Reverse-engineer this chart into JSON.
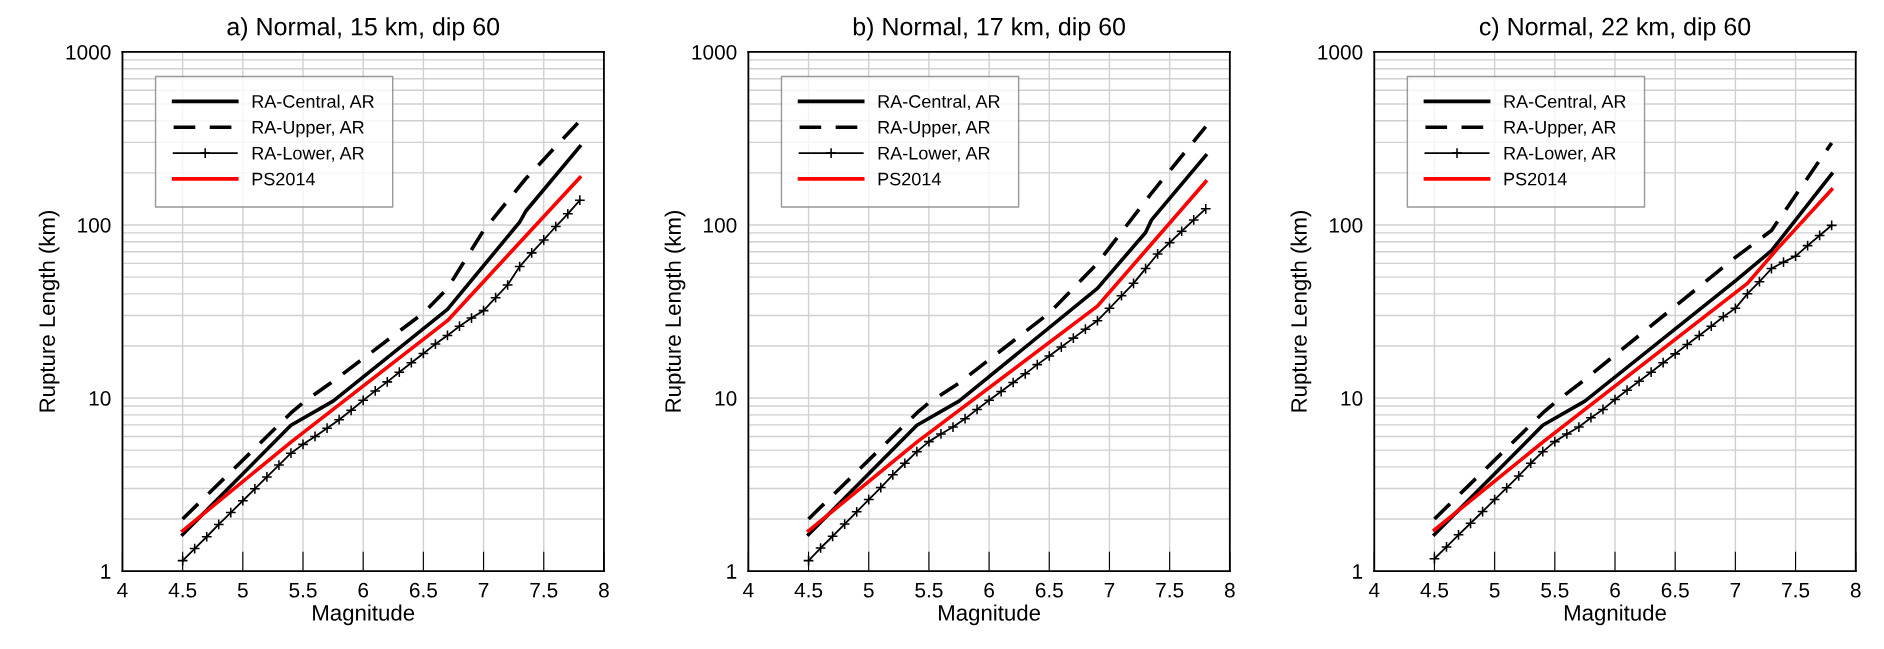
{
  "chart_data": [
    {
      "type": "line",
      "title": "a) Normal, 15 km, dip 60",
      "xlabel": "Magnitude",
      "ylabel": "Rupture Length (km)",
      "log": "y",
      "xlim": [
        4,
        8
      ],
      "ylim": [
        1,
        1000
      ],
      "xticks": [
        4,
        4.5,
        5,
        5.5,
        6,
        6.5,
        7,
        7.5,
        8
      ],
      "yticks": [
        1,
        10,
        100,
        1000
      ],
      "grid": true,
      "legend": "top left",
      "series": [
        {
          "name": "RA-Central, AR",
          "color": "#000000",
          "line_style": "solid",
          "x": [
            4.5,
            5.4,
            5.75,
            6.7,
            7.3,
            7.35,
            7.8
          ],
          "values": [
            1.63,
            6.96,
            9.6,
            32.5,
            104,
            120,
            284
          ]
        },
        {
          "name": "RA-Upper, AR",
          "color": "#000000",
          "line_style": "dashed",
          "x": [
            4.5,
            5.4,
            5.5,
            5.75,
            6.5,
            6.7,
            7.0,
            7.35,
            7.8
          ],
          "values": [
            2.0,
            8.2,
            9.4,
            12.5,
            31,
            43,
            93,
            185,
            400
          ]
        },
        {
          "name": "RA-Lower, AR",
          "color": "#000000",
          "line_style": "solid",
          "marker": "cross",
          "x": [
            4.5,
            4.6,
            4.7,
            4.8,
            4.9,
            5.0,
            5.1,
            5.2,
            5.3,
            5.4,
            5.5,
            5.6,
            5.7,
            5.8,
            5.9,
            6.0,
            6.1,
            6.2,
            6.3,
            6.4,
            6.5,
            6.6,
            6.7,
            6.8,
            6.9,
            7.0,
            7.1,
            7.2,
            7.3,
            7.4,
            7.5,
            7.6,
            7.7,
            7.8
          ],
          "values": [
            1.15,
            1.35,
            1.58,
            1.86,
            2.18,
            2.55,
            2.99,
            3.5,
            4.1,
            4.8,
            5.4,
            6.0,
            6.7,
            7.5,
            8.5,
            9.7,
            11,
            12.4,
            14.1,
            16,
            18.1,
            20.5,
            23,
            26,
            29,
            32,
            38,
            45,
            57.5,
            69,
            82,
            98,
            116,
            139
          ]
        },
        {
          "name": "PS2014",
          "color": "#ff0000",
          "line_style": "solid",
          "x": [
            4.5,
            5.4,
            6.7,
            7.8
          ],
          "values": [
            1.71,
            5.56,
            28,
            188
          ]
        }
      ]
    },
    {
      "type": "line",
      "title": "b) Normal, 17 km, dip 60",
      "xlabel": "Magnitude",
      "ylabel": "Rupture Length (km)",
      "log": "y",
      "xlim": [
        4,
        8
      ],
      "ylim": [
        1,
        1000
      ],
      "xticks": [
        4,
        4.5,
        5,
        5.5,
        6,
        6.5,
        7,
        7.5,
        8
      ],
      "yticks": [
        1,
        10,
        100,
        1000
      ],
      "grid": true,
      "legend": "top left",
      "series": [
        {
          "name": "RA-Central, AR",
          "color": "#000000",
          "line_style": "solid",
          "x": [
            4.5,
            5.4,
            5.75,
            6.9,
            7.3,
            7.35,
            7.8
          ],
          "values": [
            1.63,
            6.96,
            9.6,
            43,
            90.5,
            107,
            252
          ]
        },
        {
          "name": "RA-Upper, AR",
          "color": "#000000",
          "line_style": "dashed",
          "x": [
            4.5,
            5.4,
            5.5,
            5.75,
            6.5,
            6.9,
            7.35,
            7.8
          ],
          "values": [
            2.0,
            8.2,
            9.4,
            12.2,
            31,
            60,
            153,
            370
          ]
        },
        {
          "name": "RA-Lower, AR",
          "color": "#000000",
          "line_style": "solid",
          "marker": "cross",
          "x": [
            4.5,
            4.6,
            4.7,
            4.8,
            4.9,
            5.0,
            5.1,
            5.2,
            5.3,
            5.4,
            5.5,
            5.6,
            5.7,
            5.8,
            5.9,
            6.0,
            6.1,
            6.2,
            6.3,
            6.4,
            6.5,
            6.6,
            6.7,
            6.8,
            6.9,
            7.0,
            7.1,
            7.2,
            7.3,
            7.4,
            7.5,
            7.6,
            7.7,
            7.8
          ],
          "values": [
            1.15,
            1.36,
            1.59,
            1.87,
            2.2,
            2.59,
            3.04,
            3.6,
            4.2,
            4.9,
            5.6,
            6.2,
            6.8,
            7.6,
            8.6,
            9.7,
            10.9,
            12.3,
            13.8,
            15.6,
            17.5,
            19.7,
            22.2,
            25,
            28,
            33,
            39,
            46,
            56,
            68,
            79,
            92,
            107,
            124
          ]
        },
        {
          "name": "PS2014",
          "color": "#ff0000",
          "line_style": "solid",
          "x": [
            4.5,
            5.4,
            6.9,
            7.8
          ],
          "values": [
            1.71,
            5.56,
            34,
            178
          ]
        }
      ]
    },
    {
      "type": "line",
      "title": "c) Normal, 22 km, dip 60",
      "xlabel": "Magnitude",
      "ylabel": "Rupture Length (km)",
      "log": "y",
      "xlim": [
        4,
        8
      ],
      "ylim": [
        1,
        1000
      ],
      "xticks": [
        4,
        4.5,
        5,
        5.5,
        6,
        6.5,
        7,
        7.5,
        8
      ],
      "yticks": [
        1,
        10,
        100,
        1000
      ],
      "grid": true,
      "legend": "top left",
      "series": [
        {
          "name": "RA-Central, AR",
          "color": "#000000",
          "line_style": "solid",
          "x": [
            4.5,
            5.4,
            5.75,
            7.0,
            7.3,
            7.8
          ],
          "values": [
            1.63,
            6.96,
            9.6,
            47.5,
            71,
            197
          ]
        },
        {
          "name": "RA-Upper, AR",
          "color": "#000000",
          "line_style": "dashed",
          "x": [
            4.5,
            5.4,
            5.5,
            5.75,
            7.0,
            7.3,
            7.8
          ],
          "values": [
            2.0,
            8.2,
            9.4,
            12.8,
            65,
            93,
            298
          ]
        },
        {
          "name": "RA-Lower, AR",
          "color": "#000000",
          "line_style": "solid",
          "marker": "cross",
          "x": [
            4.5,
            4.6,
            4.7,
            4.8,
            4.9,
            5.0,
            5.1,
            5.2,
            5.3,
            5.4,
            5.5,
            5.6,
            5.7,
            5.8,
            5.9,
            6.0,
            6.1,
            6.2,
            6.3,
            6.4,
            6.5,
            6.6,
            6.7,
            6.8,
            6.9,
            7.0,
            7.1,
            7.2,
            7.3,
            7.4,
            7.5,
            7.6,
            7.7,
            7.8
          ],
          "values": [
            1.18,
            1.38,
            1.62,
            1.89,
            2.21,
            2.59,
            3.03,
            3.55,
            4.2,
            4.9,
            5.6,
            6.2,
            6.8,
            7.7,
            8.6,
            9.8,
            11.1,
            12.5,
            14.1,
            16,
            18,
            20.4,
            23,
            26,
            29.5,
            33,
            40,
            47,
            56,
            61,
            66,
            76,
            87,
            99.5
          ]
        },
        {
          "name": "PS2014",
          "color": "#ff0000",
          "line_style": "solid",
          "x": [
            4.5,
            5.4,
            7.1,
            7.35,
            7.8
          ],
          "values": [
            1.73,
            5.56,
            46,
            73,
            160
          ]
        }
      ]
    }
  ]
}
